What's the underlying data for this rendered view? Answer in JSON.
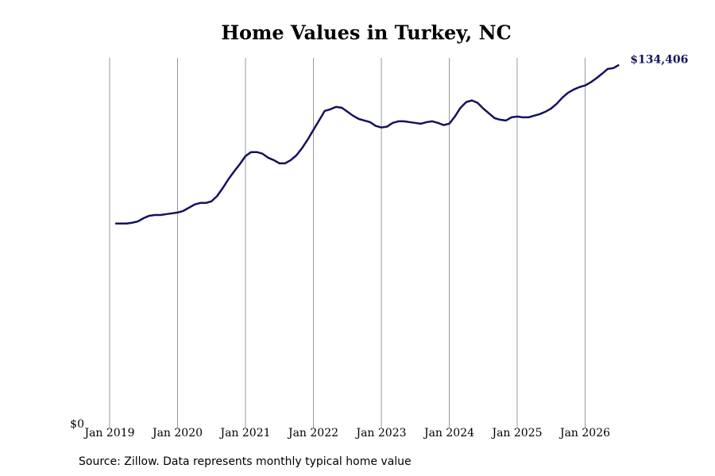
{
  "chart_data": {
    "type": "line",
    "title": "Home Values in Turkey, NC",
    "source": "Source: Zillow. Data represents monthly typical home value",
    "x": [
      "2019-02",
      "2019-03",
      "2019-04",
      "2019-05",
      "2019-06",
      "2019-07",
      "2019-08",
      "2019-09",
      "2019-10",
      "2019-11",
      "2019-12",
      "2020-01",
      "2020-02",
      "2020-03",
      "2020-04",
      "2020-05",
      "2020-06",
      "2020-07",
      "2020-08",
      "2020-09",
      "2020-10",
      "2020-11",
      "2020-12",
      "2021-01",
      "2021-02",
      "2021-03",
      "2021-04",
      "2021-05",
      "2021-06",
      "2021-07",
      "2021-08",
      "2021-09",
      "2021-10",
      "2021-11",
      "2021-12",
      "2022-01",
      "2022-02",
      "2022-03",
      "2022-04",
      "2022-05",
      "2022-06",
      "2022-07",
      "2022-08",
      "2022-09",
      "2022-10",
      "2022-11",
      "2022-12",
      "2023-01",
      "2023-02",
      "2023-03",
      "2023-04",
      "2023-05",
      "2023-06",
      "2023-07",
      "2023-08",
      "2023-09",
      "2023-10",
      "2023-11",
      "2023-12",
      "2024-01",
      "2024-02",
      "2024-03",
      "2024-04",
      "2024-05",
      "2024-06",
      "2024-07",
      "2024-08",
      "2024-09",
      "2024-10",
      "2024-11",
      "2024-12",
      "2025-01",
      "2025-02",
      "2025-03",
      "2025-04",
      "2025-05",
      "2025-06",
      "2025-07",
      "2025-08",
      "2025-09",
      "2025-10",
      "2025-11",
      "2025-12",
      "2026-01",
      "2026-02",
      "2026-03",
      "2026-04",
      "2026-05",
      "2026-06",
      "2026-07"
    ],
    "series": [
      {
        "name": "Typical home value",
        "color": "#14125e",
        "values": [
          75100,
          75100,
          75100,
          75400,
          75900,
          77100,
          78000,
          78300,
          78300,
          78600,
          78900,
          79200,
          79800,
          81000,
          82200,
          82800,
          82800,
          83400,
          85400,
          88400,
          91700,
          94600,
          97300,
          100300,
          101800,
          101800,
          101200,
          99700,
          98800,
          97600,
          97600,
          98800,
          100600,
          103300,
          106500,
          110100,
          113600,
          117200,
          117800,
          118700,
          118400,
          116900,
          115400,
          114200,
          113600,
          113000,
          111600,
          111000,
          111300,
          112700,
          113300,
          113300,
          113000,
          112700,
          112400,
          113000,
          113300,
          112700,
          111900,
          112400,
          115100,
          118400,
          120500,
          121100,
          120200,
          118100,
          116300,
          114500,
          113900,
          113600,
          114800,
          115100,
          114800,
          114800,
          115400,
          116000,
          116900,
          118100,
          119900,
          122200,
          124000,
          125200,
          126100,
          126700,
          127900,
          129400,
          131100,
          132900,
          133200,
          134406
        ]
      }
    ],
    "last_value_label": "$134,406",
    "ylim": [
      0,
      137000
    ],
    "yticks": [
      {
        "value": 0,
        "label": "$0"
      }
    ],
    "xticks": [
      {
        "value": "2019-01",
        "label": "Jan 2019"
      },
      {
        "value": "2020-01",
        "label": "Jan 2020"
      },
      {
        "value": "2021-01",
        "label": "Jan 2021"
      },
      {
        "value": "2022-01",
        "label": "Jan 2022"
      },
      {
        "value": "2023-01",
        "label": "Jan 2023"
      },
      {
        "value": "2024-01",
        "label": "Jan 2024"
      },
      {
        "value": "2025-01",
        "label": "Jan 2025"
      },
      {
        "value": "2026-01",
        "label": "Jan 2026"
      }
    ],
    "grid": true
  }
}
